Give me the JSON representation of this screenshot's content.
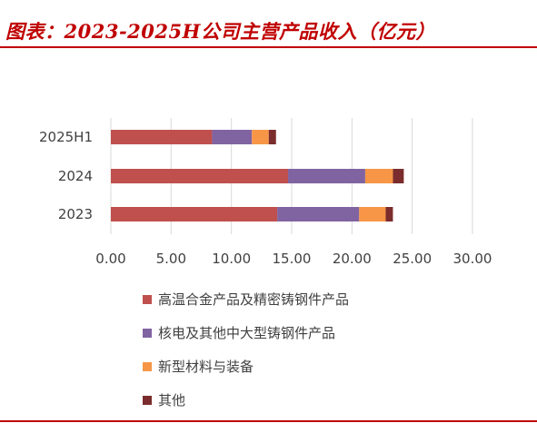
{
  "title": "图表：2023-2025H公司主营产品收入（亿元）",
  "chart_data": {
    "type": "bar",
    "orientation": "horizontal",
    "stacked": true,
    "categories": [
      "2025H1",
      "2024",
      "2023"
    ],
    "series": [
      {
        "name": "高温合金产品及精密铸钢件产品",
        "color": "#c0504d",
        "values": [
          8.4,
          14.7,
          13.8
        ]
      },
      {
        "name": "核电及其他中大型铸钢件产品",
        "color": "#8064a2",
        "values": [
          3.3,
          6.4,
          6.8
        ]
      },
      {
        "name": "新型材料与装备",
        "color": "#f79646",
        "values": [
          1.4,
          2.3,
          2.2
        ]
      },
      {
        "name": "其他",
        "color": "#7b2c2c",
        "values": [
          0.6,
          0.9,
          0.6
        ]
      }
    ],
    "xlim": [
      0,
      30
    ],
    "xticks": [
      "0.00",
      "5.00",
      "10.00",
      "15.00",
      "20.00",
      "25.00",
      "30.00"
    ],
    "xtick_values": [
      0,
      5,
      10,
      15,
      20,
      25,
      30
    ],
    "grid": true,
    "legend_position": "bottom"
  }
}
